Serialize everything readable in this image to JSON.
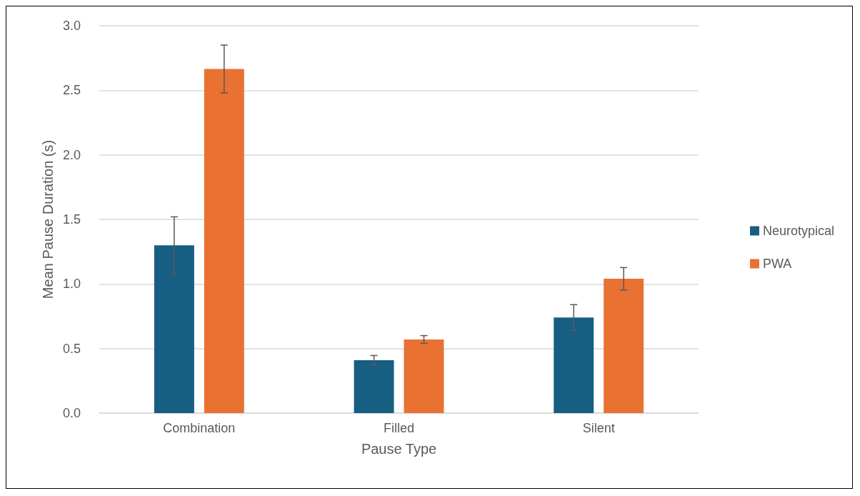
{
  "chart_data": {
    "type": "bar",
    "xlabel": "Pause Type",
    "ylabel": "Mean Pause Duration (s)",
    "categories": [
      "Combination",
      "Filled",
      "Silent"
    ],
    "series": [
      {
        "name": "Neurotypical",
        "color": "#175e83",
        "values": [
          1.3,
          0.41,
          0.74
        ],
        "errors": [
          0.22,
          0.036,
          0.1
        ]
      },
      {
        "name": "PWA",
        "color": "#e97132",
        "values": [
          2.665,
          0.57,
          1.04
        ],
        "errors": [
          0.185,
          0.03,
          0.087
        ]
      }
    ],
    "ylim": [
      0,
      3
    ],
    "yticks": [
      {
        "value": 0,
        "label": "0.0"
      },
      {
        "value": 0.5,
        "label": "0.5"
      },
      {
        "value": 1,
        "label": "1.0"
      },
      {
        "value": 1.5,
        "label": "1.5"
      },
      {
        "value": 2,
        "label": "2.0"
      },
      {
        "value": 2.5,
        "label": "2.5"
      },
      {
        "value": 3,
        "label": "3.0"
      }
    ],
    "grid": "y",
    "legend": "right"
  }
}
